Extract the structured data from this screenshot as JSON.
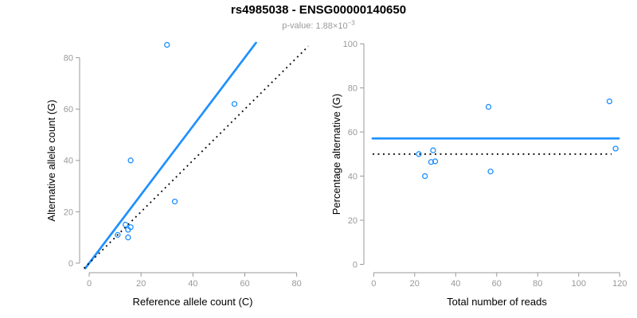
{
  "header": {
    "title": "rs4985038 - ENSG00000140650",
    "p_value": {
      "label": "p-value:",
      "mantissa": "1.88",
      "times": "×",
      "base": "10",
      "exponent": "−3"
    }
  },
  "colors": {
    "accent": "#1E90FF",
    "line_black": "#000000",
    "axis": "#999999",
    "tick_text": "#999999"
  },
  "chart_data": [
    {
      "name": "allele-counts",
      "type": "scatter",
      "xlabel": "Reference allele count (C)",
      "ylabel": "Alternative allele count (G)",
      "xlim": [
        0,
        80
      ],
      "ylim": [
        0,
        80
      ],
      "xticks": [
        0,
        20,
        40,
        60,
        80
      ],
      "yticks": [
        0,
        20,
        40,
        60,
        80
      ],
      "grid": false,
      "points": [
        [
          30,
          85
        ],
        [
          56,
          62
        ],
        [
          16,
          40
        ],
        [
          33,
          24
        ],
        [
          14,
          15
        ],
        [
          16,
          14
        ],
        [
          15,
          13
        ],
        [
          11,
          11
        ],
        [
          15,
          10
        ]
      ],
      "lines": [
        {
          "name": "fit-line",
          "style": "solid",
          "color": "accent",
          "x": [
            -1.5,
            64.3
          ],
          "y": [
            -2.0,
            85.8
          ]
        },
        {
          "name": "identity-line",
          "style": "dotted",
          "color": "line_black",
          "x": [
            -2.0,
            84.5
          ],
          "y": [
            -2.0,
            84.5
          ]
        }
      ]
    },
    {
      "name": "percentage-alternative",
      "type": "scatter",
      "xlabel": "Total number of reads",
      "ylabel": "Percentage alternative (G)",
      "xlim": [
        0,
        120
      ],
      "ylim": [
        0,
        100
      ],
      "xticks": [
        0,
        20,
        40,
        60,
        80,
        100,
        120
      ],
      "yticks": [
        0,
        20,
        40,
        60,
        80,
        100
      ],
      "grid": false,
      "points": [
        [
          115,
          73.9
        ],
        [
          56,
          71.4
        ],
        [
          118,
          52.5
        ],
        [
          29,
          51.7
        ],
        [
          22,
          50.0
        ],
        [
          30,
          46.7
        ],
        [
          28,
          46.4
        ],
        [
          57,
          42.1
        ],
        [
          25,
          40.0
        ]
      ],
      "lines": [
        {
          "name": "fit-line",
          "style": "solid",
          "color": "accent",
          "x": [
            -0.5,
            119.5
          ],
          "y": [
            57.1,
            57.1
          ]
        },
        {
          "name": "expected-line",
          "style": "dotted",
          "color": "line_black",
          "x": [
            -0.5,
            116.0
          ],
          "y": [
            50.0,
            50.0
          ]
        }
      ]
    }
  ]
}
